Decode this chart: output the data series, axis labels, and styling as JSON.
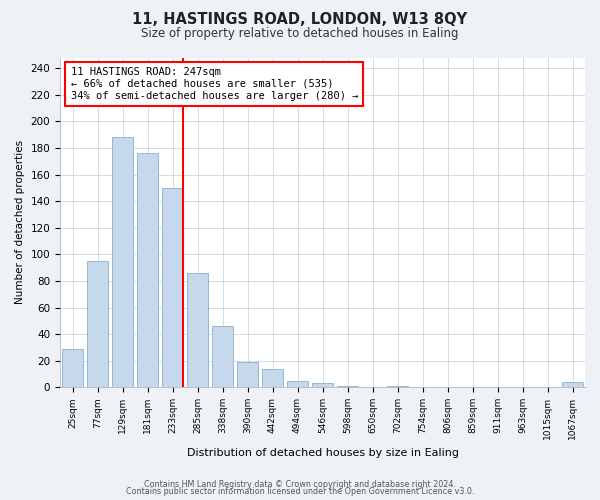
{
  "title": "11, HASTINGS ROAD, LONDON, W13 8QY",
  "subtitle": "Size of property relative to detached houses in Ealing",
  "xlabel": "Distribution of detached houses by size in Ealing",
  "ylabel": "Number of detached properties",
  "bar_labels": [
    "25sqm",
    "77sqm",
    "129sqm",
    "181sqm",
    "233sqm",
    "285sqm",
    "338sqm",
    "390sqm",
    "442sqm",
    "494sqm",
    "546sqm",
    "598sqm",
    "650sqm",
    "702sqm",
    "754sqm",
    "806sqm",
    "859sqm",
    "911sqm",
    "963sqm",
    "1015sqm",
    "1067sqm"
  ],
  "bar_values": [
    29,
    95,
    188,
    176,
    150,
    86,
    46,
    19,
    14,
    5,
    3,
    1,
    0,
    1,
    0,
    0,
    0,
    0,
    0,
    0,
    4
  ],
  "bar_color": "#c5d8ec",
  "bar_edge_color": "#8ab0d0",
  "ylim": [
    0,
    248
  ],
  "yticks": [
    0,
    20,
    40,
    60,
    80,
    100,
    120,
    140,
    160,
    180,
    200,
    220,
    240
  ],
  "red_line_x": 4.42,
  "annotation_title": "11 HASTINGS ROAD: 247sqm",
  "annotation_line1": "← 66% of detached houses are smaller (535)",
  "annotation_line2": "34% of semi-detached houses are larger (280) →",
  "footer1": "Contains HM Land Registry data © Crown copyright and database right 2024.",
  "footer2": "Contains public sector information licensed under the Open Government Licence v3.0.",
  "background_color": "#eef2f7",
  "plot_bg_color": "#ffffff"
}
